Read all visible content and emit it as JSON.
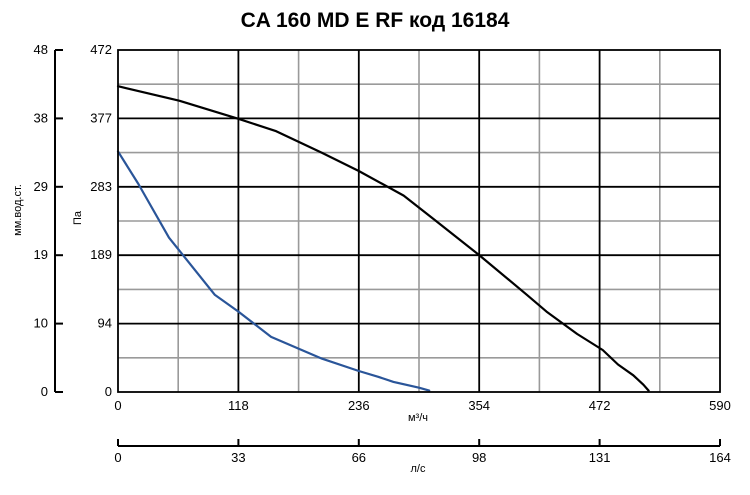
{
  "chart_data": {
    "type": "line",
    "title": "CA 160 MD E RF код 16184",
    "xlabel": "м³/ч",
    "ylabel": "Па",
    "secondary_ylabel": "мм.вод.ст.",
    "secondary_xlabel": "л/с",
    "xlim": [
      0,
      590
    ],
    "ylim": [
      0,
      472
    ],
    "x_ticks": [
      "0",
      "118",
      "236",
      "354",
      "472",
      "590"
    ],
    "y_ticks": [
      "0",
      "94",
      "189",
      "283",
      "377",
      "472"
    ],
    "secondary_y_ticks": [
      "0",
      "10",
      "19",
      "29",
      "38",
      "48"
    ],
    "secondary_x_ticks": [
      "0",
      "33",
      "66",
      "98",
      "131",
      "164"
    ],
    "grid": true,
    "series": [
      {
        "color": "#000000",
        "x": [
          0,
          60,
          118,
          155,
          200,
          236,
          280,
          310,
          354,
          400,
          420,
          450,
          475,
          490,
          505,
          515,
          520
        ],
        "y": [
          422,
          402,
          377,
          360,
          330,
          305,
          271,
          238,
          189,
          135,
          111,
          80,
          58,
          38,
          23,
          10,
          2
        ]
      },
      {
        "color": "#2a5599",
        "x": [
          0,
          20,
          50,
          95,
          118,
          150,
          200,
          236,
          255,
          270,
          295,
          305
        ],
        "y": [
          332,
          287,
          213,
          134,
          111,
          76,
          46,
          29,
          21,
          14,
          6,
          2
        ]
      }
    ]
  }
}
